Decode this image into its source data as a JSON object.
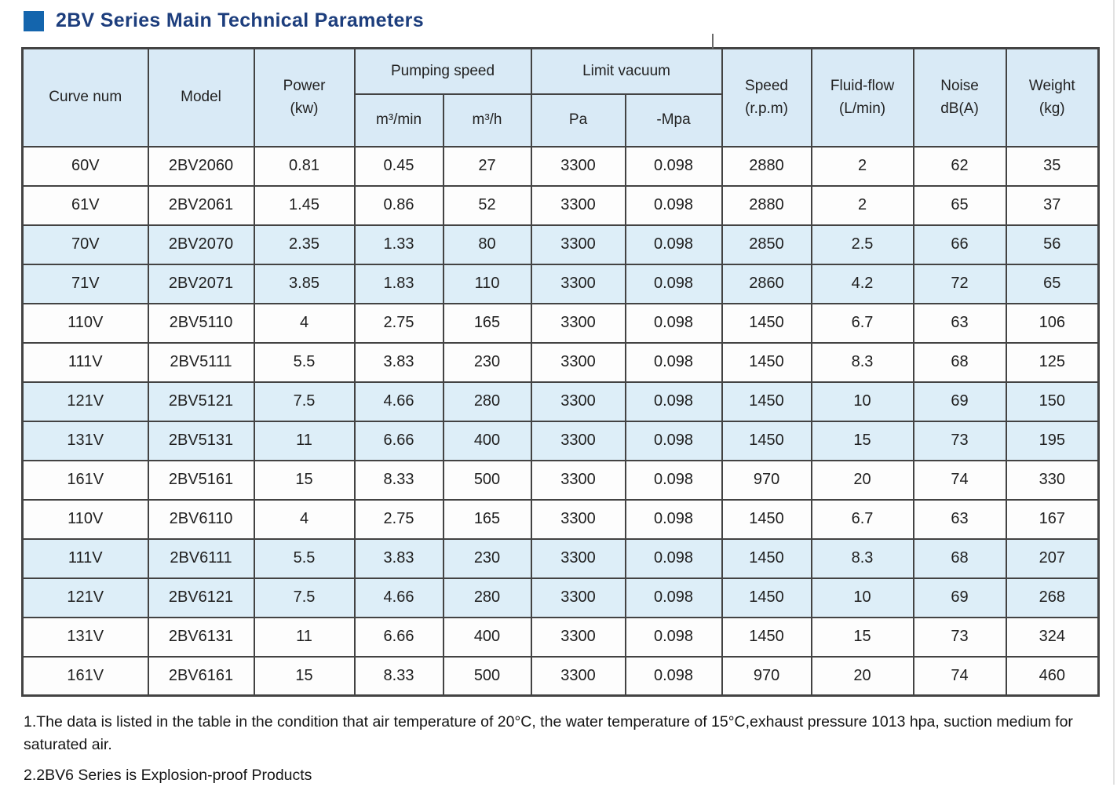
{
  "title": {
    "text": "2BV Series Main Technical Parameters"
  },
  "colors": {
    "header_bg": "#d9eaf6",
    "tint_row_bg": "#ddeef8",
    "border": "#434343",
    "title_text": "#1d3e7d",
    "bullet_square": "#1465ad"
  },
  "table": {
    "columns": [
      {
        "key": "curve",
        "label": "Curve num"
      },
      {
        "key": "model",
        "label": "Model"
      },
      {
        "key": "power",
        "label": "Power",
        "sublabel": "(kw)"
      },
      {
        "key": "pumping",
        "label": "Pumping speed",
        "children": [
          {
            "key": "m3_min",
            "label": "m³/min"
          },
          {
            "key": "m3_h",
            "label": "m³/h"
          }
        ]
      },
      {
        "key": "vacuum",
        "label": "Limit vacuum",
        "children": [
          {
            "key": "pa",
            "label": "Pa"
          },
          {
            "key": "mpa",
            "label": "-Mpa"
          }
        ]
      },
      {
        "key": "speed",
        "label": "Speed",
        "sublabel": "(r.p.m)"
      },
      {
        "key": "fluid",
        "label": "Fluid-flow",
        "sublabel": "(L/min)"
      },
      {
        "key": "noise",
        "label": "Noise",
        "sublabel": "dB(A)"
      },
      {
        "key": "weight",
        "label": "Weight",
        "sublabel": "(kg)"
      }
    ],
    "row_keys": [
      "curve",
      "model",
      "power",
      "m3_min",
      "m3_h",
      "pa",
      "mpa",
      "speed",
      "fluid",
      "noise",
      "weight"
    ],
    "rows": [
      {
        "curve": "60V",
        "model": "2BV2060",
        "power": "0.81",
        "m3_min": "0.45",
        "m3_h": "27",
        "pa": "3300",
        "mpa": "0.098",
        "speed": "2880",
        "fluid": "2",
        "noise": "62",
        "weight": "35",
        "shaded": false
      },
      {
        "curve": "61V",
        "model": "2BV2061",
        "power": "1.45",
        "m3_min": "0.86",
        "m3_h": "52",
        "pa": "3300",
        "mpa": "0.098",
        "speed": "2880",
        "fluid": "2",
        "noise": "65",
        "weight": "37",
        "shaded": false
      },
      {
        "curve": "70V",
        "model": "2BV2070",
        "power": "2.35",
        "m3_min": "1.33",
        "m3_h": "80",
        "pa": "3300",
        "mpa": "0.098",
        "speed": "2850",
        "fluid": "2.5",
        "noise": "66",
        "weight": "56",
        "shaded": true
      },
      {
        "curve": "71V",
        "model": "2BV2071",
        "power": "3.85",
        "m3_min": "1.83",
        "m3_h": "110",
        "pa": "3300",
        "mpa": "0.098",
        "speed": "2860",
        "fluid": "4.2",
        "noise": "72",
        "weight": "65",
        "shaded": true
      },
      {
        "curve": "110V",
        "model": "2BV5110",
        "power": "4",
        "m3_min": "2.75",
        "m3_h": "165",
        "pa": "3300",
        "mpa": "0.098",
        "speed": "1450",
        "fluid": "6.7",
        "noise": "63",
        "weight": "106",
        "shaded": false
      },
      {
        "curve": "111V",
        "model": "2BV5111",
        "power": "5.5",
        "m3_min": "3.83",
        "m3_h": "230",
        "pa": "3300",
        "mpa": "0.098",
        "speed": "1450",
        "fluid": "8.3",
        "noise": "68",
        "weight": "125",
        "shaded": false
      },
      {
        "curve": "121V",
        "model": "2BV5121",
        "power": "7.5",
        "m3_min": "4.66",
        "m3_h": "280",
        "pa": "3300",
        "mpa": "0.098",
        "speed": "1450",
        "fluid": "10",
        "noise": "69",
        "weight": "150",
        "shaded": true
      },
      {
        "curve": "131V",
        "model": "2BV5131",
        "power": "11",
        "m3_min": "6.66",
        "m3_h": "400",
        "pa": "3300",
        "mpa": "0.098",
        "speed": "1450",
        "fluid": "15",
        "noise": "73",
        "weight": "195",
        "shaded": true
      },
      {
        "curve": "161V",
        "model": "2BV5161",
        "power": "15",
        "m3_min": "8.33",
        "m3_h": "500",
        "pa": "3300",
        "mpa": "0.098",
        "speed": "970",
        "fluid": "20",
        "noise": "74",
        "weight": "330",
        "shaded": false
      },
      {
        "curve": "110V",
        "model": "2BV6110",
        "power": "4",
        "m3_min": "2.75",
        "m3_h": "165",
        "pa": "3300",
        "mpa": "0.098",
        "speed": "1450",
        "fluid": "6.7",
        "noise": "63",
        "weight": "167",
        "shaded": false
      },
      {
        "curve": "111V",
        "model": "2BV6111",
        "power": "5.5",
        "m3_min": "3.83",
        "m3_h": "230",
        "pa": "3300",
        "mpa": "0.098",
        "speed": "1450",
        "fluid": "8.3",
        "noise": "68",
        "weight": "207",
        "shaded": true
      },
      {
        "curve": "121V",
        "model": "2BV6121",
        "power": "7.5",
        "m3_min": "4.66",
        "m3_h": "280",
        "pa": "3300",
        "mpa": "0.098",
        "speed": "1450",
        "fluid": "10",
        "noise": "69",
        "weight": "268",
        "shaded": true
      },
      {
        "curve": "131V",
        "model": "2BV6131",
        "power": "11",
        "m3_min": "6.66",
        "m3_h": "400",
        "pa": "3300",
        "mpa": "0.098",
        "speed": "1450",
        "fluid": "15",
        "noise": "73",
        "weight": "324",
        "shaded": false
      },
      {
        "curve": "161V",
        "model": "2BV6161",
        "power": "15",
        "m3_min": "8.33",
        "m3_h": "500",
        "pa": "3300",
        "mpa": "0.098",
        "speed": "970",
        "fluid": "20",
        "noise": "74",
        "weight": "460",
        "shaded": false
      }
    ]
  },
  "notes": [
    "1.The data is listed in the table in the condition that air temperature of 20°C, the water temperature of 15°C,exhaust pressure 1013 hpa, suction medium for saturated air.",
    "2.2BV6 Series is Explosion-proof Products"
  ]
}
